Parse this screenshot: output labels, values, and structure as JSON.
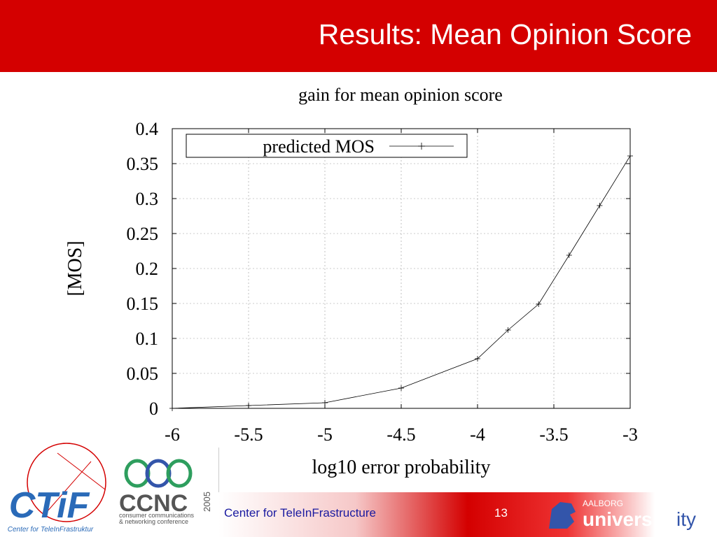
{
  "slide": {
    "title": "Results: Mean Opinion Score",
    "footer_text": "Center for TeleInFrastructure",
    "page_number": "13"
  },
  "logos": {
    "ctif_letters": "CTiF",
    "ctif_caption": "Center for TeleInFrastruktur",
    "ccnc_letters": "CCNC",
    "ccnc_year": "2005",
    "ccnc_caption_line1": "consumer communications",
    "ccnc_caption_line2": "& networking conference",
    "aalborg_top": "AALBORG",
    "aalborg_main": "univers",
    "aalborg_suffix": "ity"
  },
  "colors": {
    "header_red": "#d40000",
    "footer_text_blue": "#1a1aa0",
    "ctif_blue": "#2a6ab8",
    "ccnc_green": "#2e9e5e",
    "ccnc_blue": "#3355aa"
  },
  "chart_data": {
    "type": "line",
    "title": "gain for mean opinion score",
    "xlabel": "log10 error probability",
    "ylabel": "[MOS]",
    "xlim": [
      -6,
      -3
    ],
    "ylim": [
      0,
      0.4
    ],
    "x_ticks": [
      "-6",
      "-5.5",
      "-5",
      "-4.5",
      "-4",
      "-3.5",
      "-3"
    ],
    "y_ticks": [
      "0",
      "0.05",
      "0.1",
      "0.15",
      "0.2",
      "0.25",
      "0.3",
      "0.35",
      "0.4"
    ],
    "grid": true,
    "legend_position": "top-left",
    "series": [
      {
        "name": "predicted MOS",
        "marker": "+",
        "x": [
          -6,
          -5.5,
          -5,
          -4.5,
          -4,
          -3.8,
          -3.6,
          -3.4,
          -3.2,
          -3
        ],
        "y": [
          0.0,
          0.004,
          0.008,
          0.029,
          0.071,
          0.112,
          0.149,
          0.219,
          0.29,
          0.361
        ]
      }
    ]
  }
}
